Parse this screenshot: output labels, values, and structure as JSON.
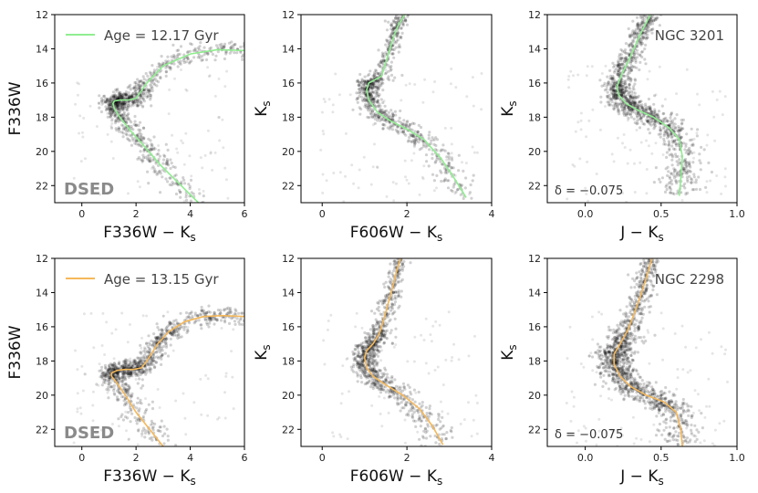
{
  "figure": {
    "rows": [
      {
        "name": "NGC 3201",
        "age_label": "Age = 12.17 Gyr",
        "iso_color": "#90ee90",
        "delta_label": "δ = −0.075"
      },
      {
        "name": "NGC 2298",
        "age_label": "Age = 13.15 Gyr",
        "iso_color": "#f5b85a",
        "delta_label": "δ = −0.075"
      }
    ],
    "model_label": "DSED",
    "columns": [
      {
        "xlabel_main": "F336W − K",
        "xlabel_sub": "s",
        "ylabel_main": "F336W",
        "ylabel_sub": ""
      },
      {
        "xlabel_main": "F606W − K",
        "xlabel_sub": "s",
        "ylabel_main": "K",
        "ylabel_sub": "s"
      },
      {
        "xlabel_main": "J − K",
        "xlabel_sub": "s",
        "ylabel_main": "K",
        "ylabel_sub": "s"
      }
    ]
  },
  "chart_data": [
    {
      "type": "scatter",
      "row": 0,
      "col": 0,
      "xlim": [
        -1,
        6
      ],
      "ylim": [
        23,
        12
      ],
      "xticks": [
        0,
        2,
        4,
        6
      ],
      "yticks": [
        12,
        14,
        16,
        18,
        20,
        22
      ],
      "series": [
        {
          "name": "Age = 12.17 Gyr isochrone",
          "type": "line",
          "x": [
            4.3,
            3.6,
            2.9,
            2.3,
            1.8,
            1.4,
            1.2,
            1.15,
            1.2,
            1.4,
            1.7,
            2.0,
            2.4,
            3.0,
            4.0,
            5.0,
            6.0
          ],
          "y": [
            23.0,
            21.9,
            20.8,
            19.7,
            18.8,
            18.0,
            17.5,
            17.2,
            17.05,
            17.0,
            17.0,
            16.9,
            16.0,
            15.0,
            14.3,
            14.05,
            14.1
          ]
        }
      ]
    },
    {
      "type": "scatter",
      "row": 0,
      "col": 1,
      "xlim": [
        -0.5,
        4
      ],
      "ylim": [
        23,
        12
      ],
      "xticks": [
        0,
        2,
        4
      ],
      "yticks": [
        12,
        14,
        16,
        18,
        20,
        22
      ],
      "series": [
        {
          "name": "isochrone",
          "type": "line",
          "x": [
            3.4,
            3.1,
            2.8,
            2.4,
            2.0,
            1.6,
            1.3,
            1.1,
            1.05,
            1.1,
            1.25,
            1.4,
            1.5,
            1.6,
            1.7,
            1.8,
            1.95
          ],
          "y": [
            22.7,
            21.5,
            20.4,
            19.3,
            18.7,
            18.2,
            17.7,
            17.0,
            16.4,
            16.0,
            15.8,
            15.6,
            14.8,
            14.0,
            13.2,
            12.6,
            12.0
          ]
        }
      ]
    },
    {
      "type": "scatter",
      "row": 0,
      "col": 2,
      "xlim": [
        -0.25,
        1.0
      ],
      "ylim": [
        23,
        12
      ],
      "xticks": [
        0.0,
        0.5,
        1.0
      ],
      "yticks": [
        12,
        14,
        16,
        18,
        20,
        22
      ],
      "series": [
        {
          "name": "isochrone",
          "type": "line",
          "x": [
            0.62,
            0.63,
            0.64,
            0.62,
            0.55,
            0.45,
            0.35,
            0.27,
            0.22,
            0.21,
            0.24,
            0.28,
            0.32,
            0.36,
            0.4,
            0.43
          ],
          "y": [
            22.6,
            21.5,
            20.3,
            19.3,
            18.6,
            18.0,
            17.6,
            17.2,
            16.7,
            16.2,
            15.5,
            14.8,
            14.0,
            13.2,
            12.5,
            12.0
          ]
        }
      ]
    },
    {
      "type": "scatter",
      "row": 1,
      "col": 0,
      "xlim": [
        -1,
        6
      ],
      "ylim": [
        23,
        12
      ],
      "xticks": [
        0,
        2,
        4,
        6
      ],
      "yticks": [
        12,
        14,
        16,
        18,
        20,
        22
      ],
      "series": [
        {
          "name": "Age = 13.15 Gyr isochrone",
          "type": "line",
          "x": [
            3.0,
            2.5,
            2.0,
            1.6,
            1.3,
            1.1,
            1.1,
            1.3,
            1.6,
            1.9,
            2.2,
            2.4,
            2.8,
            3.2,
            3.8,
            4.5,
            5.2,
            6.0
          ],
          "y": [
            23.0,
            22.0,
            21.0,
            20.0,
            19.3,
            18.9,
            18.7,
            18.55,
            18.5,
            18.5,
            18.4,
            18.0,
            17.0,
            16.3,
            15.7,
            15.4,
            15.35,
            15.4
          ]
        }
      ]
    },
    {
      "type": "scatter",
      "row": 1,
      "col": 1,
      "xlim": [
        -0.5,
        4
      ],
      "ylim": [
        23,
        12
      ],
      "xticks": [
        0,
        2,
        4
      ],
      "yticks": [
        12,
        14,
        16,
        18,
        20,
        22
      ],
      "series": [
        {
          "name": "isochrone",
          "type": "line",
          "x": [
            2.85,
            2.6,
            2.3,
            1.9,
            1.5,
            1.2,
            1.05,
            1.0,
            1.05,
            1.2,
            1.35,
            1.45,
            1.55,
            1.65,
            1.75,
            1.85
          ],
          "y": [
            22.9,
            21.8,
            20.8,
            20.0,
            19.4,
            18.9,
            18.4,
            17.8,
            17.4,
            17.0,
            16.4,
            15.6,
            14.7,
            13.8,
            12.8,
            12.0
          ]
        }
      ]
    },
    {
      "type": "scatter",
      "row": 1,
      "col": 2,
      "xlim": [
        -0.25,
        1.0
      ],
      "ylim": [
        23,
        12
      ],
      "xticks": [
        0.0,
        0.5,
        1.0
      ],
      "yticks": [
        12,
        14,
        16,
        18,
        20,
        22
      ],
      "series": [
        {
          "name": "isochrone",
          "type": "line",
          "x": [
            0.64,
            0.63,
            0.6,
            0.52,
            0.4,
            0.3,
            0.23,
            0.19,
            0.19,
            0.23,
            0.28,
            0.32,
            0.36,
            0.4,
            0.44
          ],
          "y": [
            23.0,
            22.0,
            21.0,
            20.4,
            20.0,
            19.5,
            18.9,
            18.2,
            17.6,
            17.0,
            16.2,
            15.3,
            14.3,
            13.2,
            12.0
          ]
        }
      ]
    }
  ]
}
